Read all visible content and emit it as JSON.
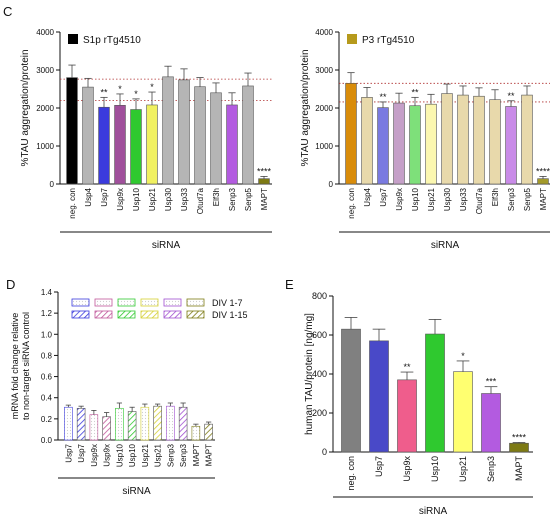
{
  "panels": {
    "c": "C",
    "d": "D",
    "e": "E"
  },
  "chart_data": [
    {
      "id": "c-left",
      "type": "bar",
      "ylabel": "%TAU aggregation/protein",
      "xlabel": "siRNA",
      "ylim": [
        0,
        4000
      ],
      "yticks": [
        0,
        1000,
        2000,
        3000,
        4000
      ],
      "legend": {
        "label": "S1p rTg4510",
        "color": "#000000",
        "position": "top-left"
      },
      "ref_lines": [
        2760,
        2200
      ],
      "categories": [
        "neg. con",
        "Usp4",
        "Usp7",
        "Usp9x",
        "Usp10",
        "Usp21",
        "Usp30",
        "Usp33",
        "Otud7a",
        "Elf3h",
        "Senp3",
        "Senp5",
        "MAPT"
      ],
      "values": [
        2800,
        2550,
        2020,
        2070,
        1960,
        2080,
        2820,
        2740,
        2560,
        2400,
        2080,
        2580,
        140
      ],
      "errors": [
        330,
        230,
        260,
        300,
        280,
        340,
        280,
        290,
        240,
        260,
        320,
        340,
        60
      ],
      "labels": [
        "",
        "",
        "**",
        "*",
        "*",
        "*",
        "",
        "",
        "",
        "",
        "",
        "",
        "****"
      ],
      "colors": [
        "#000000",
        "#b5b5b5",
        "#3b3bdd",
        "#a0509c",
        "#2fc92f",
        "#f0f060",
        "#b5b5b5",
        "#b5b5b5",
        "#b5b5b5",
        "#b5b5b5",
        "#b35be0",
        "#b5b5b5",
        "#7d7a14"
      ]
    },
    {
      "id": "c-right",
      "type": "bar",
      "ylabel": "%TAU aggregation/protein",
      "xlabel": "siRNA",
      "ylim": [
        0,
        4000
      ],
      "yticks": [
        0,
        1000,
        2000,
        3000,
        4000
      ],
      "legend": {
        "label": "P3 rTg4510",
        "color": "#b69a1c",
        "position": "top-left"
      },
      "ref_lines": [
        2650,
        2160
      ],
      "categories": [
        "neg. con",
        "Usp4",
        "Usp7",
        "Usp9x",
        "Usp10",
        "Usp21",
        "Usp30",
        "Usp33",
        "Otud7a",
        "Elf3h",
        "Senp3",
        "Senp5",
        "MAPT"
      ],
      "values": [
        2650,
        2280,
        2010,
        2130,
        2060,
        2100,
        2380,
        2340,
        2310,
        2220,
        2040,
        2340,
        140
      ],
      "errors": [
        280,
        260,
        150,
        260,
        220,
        260,
        250,
        240,
        220,
        260,
        150,
        240,
        60
      ],
      "labels": [
        "",
        "",
        "**",
        "",
        "**",
        "",
        "",
        "",
        "",
        "",
        "**",
        "",
        "****"
      ],
      "colors": [
        "#d98c0a",
        "#e8d9ab",
        "#7a7ae0",
        "#c5a0c8",
        "#7ee07a",
        "#fbf7b0",
        "#e8d9ab",
        "#e8d9ab",
        "#e8d9ab",
        "#e8d9ab",
        "#c98be8",
        "#e8d9ab",
        "#a39a2a"
      ]
    },
    {
      "id": "d",
      "type": "bar",
      "ylabel": "mRNA fold change relative to non-target siRNA control",
      "xlabel": "siRNA",
      "ylim": [
        0,
        1.4
      ],
      "yticks": [
        0,
        0.2,
        0.4,
        0.6,
        0.8,
        1.0,
        1.2,
        1.4
      ],
      "legend_entries": [
        "DIV 1-7",
        "DIV 1-15"
      ],
      "categories": [
        "Usp7",
        "Usp7",
        "Usp9x",
        "Usp9x",
        "Usp10",
        "Usp10",
        "Usp21",
        "Usp21",
        "Senp3",
        "Senp3",
        "MAPT",
        "MAPT"
      ],
      "values": [
        0.31,
        0.3,
        0.24,
        0.22,
        0.3,
        0.27,
        0.31,
        0.32,
        0.32,
        0.31,
        0.13,
        0.15
      ],
      "errors": [
        0.02,
        0.02,
        0.04,
        0.04,
        0.05,
        0.04,
        0.03,
        0.02,
        0.03,
        0.04,
        0.02,
        0.02
      ],
      "colors": [
        "#3b3bdd",
        "#3b3bdd",
        "#c0569a",
        "#c0569a",
        "#2fc92f",
        "#2fc92f",
        "#d4cf30",
        "#d4cf30",
        "#a04fd0",
        "#a04fd0",
        "#7d7a14",
        "#7d7a14"
      ]
    },
    {
      "id": "e",
      "type": "bar",
      "ylabel": "human TAU/protein [ng/mg]",
      "xlabel": "siRNA",
      "ylim": [
        0,
        800
      ],
      "yticks": [
        0,
        200,
        400,
        600,
        800
      ],
      "categories": [
        "neg. con",
        "Usp7",
        "Usp9x",
        "Usp10",
        "Usp21",
        "Senp3",
        "MAPT"
      ],
      "values": [
        630,
        570,
        370,
        605,
        412,
        300,
        45
      ],
      "errors": [
        60,
        60,
        40,
        75,
        55,
        35,
        4
      ],
      "labels": [
        "",
        "",
        "**",
        "",
        "*",
        "***",
        "****"
      ],
      "colors": [
        "#808080",
        "#4949c8",
        "#ef5d8c",
        "#2fc92f",
        "#ffff70",
        "#b35be0",
        "#7d7a14"
      ]
    }
  ]
}
